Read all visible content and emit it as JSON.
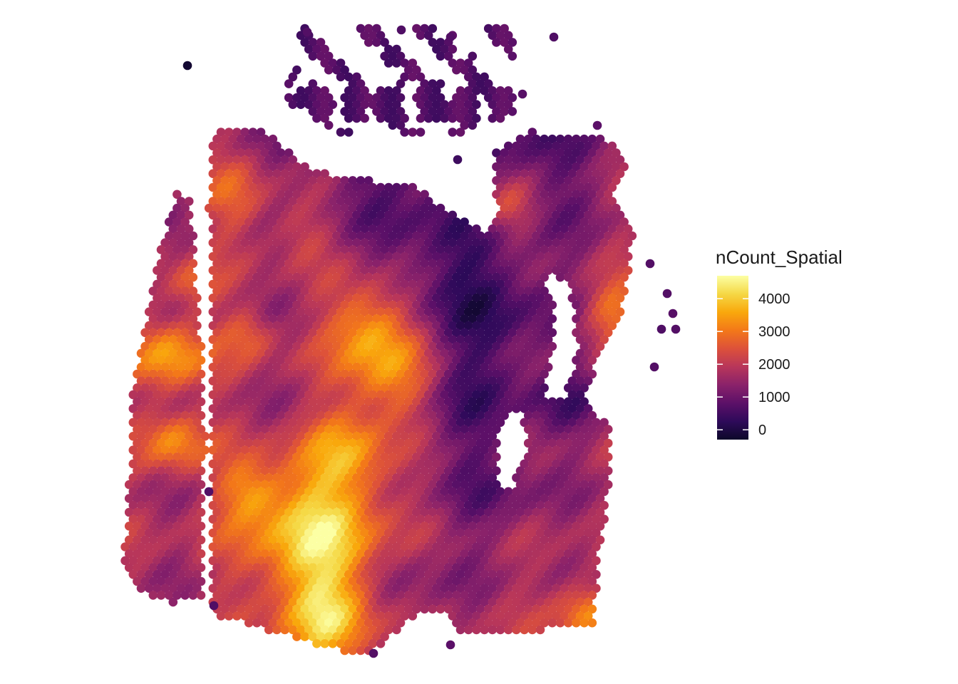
{
  "chart_data": {
    "type": "scatter",
    "subtype": "spatial-spot-map",
    "title": "",
    "xlabel": "",
    "ylabel": "",
    "grid": false,
    "axes_visible": false,
    "legend": {
      "title": "nCount_Spatial",
      "placement": "right",
      "type": "colorbar",
      "range": [
        -300,
        4700
      ],
      "ticks": [
        0,
        1000,
        2000,
        3000,
        4000
      ],
      "tick_labels": [
        "0",
        "1000",
        "2000",
        "3000",
        "4000"
      ],
      "colormap": "inferno",
      "color_stops": [
        "#0d0829",
        "#2e0a5a",
        "#5c1068",
        "#8a226a",
        "#b8365a",
        "#dd513a",
        "#f37819",
        "#f9a80c",
        "#f5d845",
        "#fcffa4"
      ]
    },
    "colors": {
      "low": "#000004",
      "mid_low": "#420a68",
      "mid": "#932667",
      "mid_high": "#dd513a",
      "high": "#fca50a",
      "max": "#fcffa4"
    },
    "value_range_shown": [
      0,
      4700
    ]
  }
}
